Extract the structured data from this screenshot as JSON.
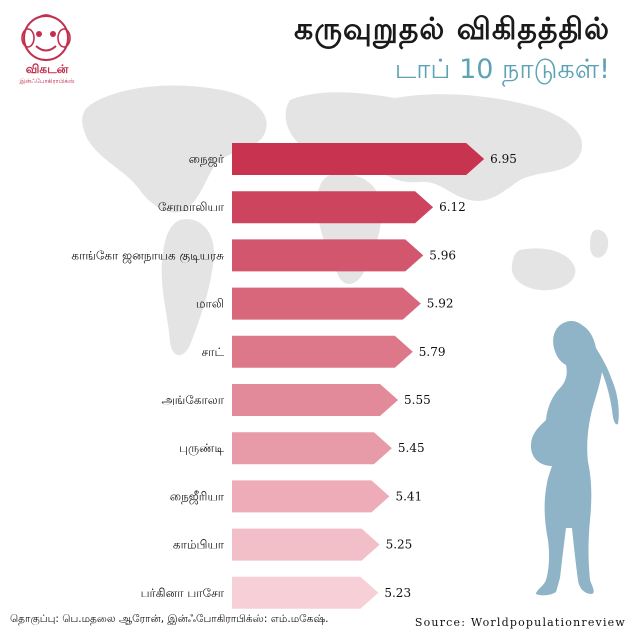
{
  "header": {
    "title_line1": "கருவுறுதல் விகிதத்தில்",
    "title_line2": "டாப் 10 நாடுகள்!"
  },
  "logo": {
    "name": "விகடன்",
    "tagline": "இன்ஃபோகிராபிக்ஸ்"
  },
  "footer": {
    "credits": "தொகுப்பு: பெ.மதலை ஆரோன்,     இன்ஃபோகிராபிக்ஸ்: எம்.மகேஷ்.",
    "source": "Source: Worldpopulationreview"
  },
  "colors": {
    "title_accent": "#5ea2b6",
    "silhouette": "#8fb3c7",
    "logo": "#c2304f",
    "bar_top": "#c8334f",
    "bar_bottom": "#f7cfd6"
  },
  "chart_data": {
    "type": "bar",
    "orientation": "horizontal",
    "categories": [
      "நைஜர்",
      "சோமாலியா",
      "காங்கோ ஜனநாயக குடியரசு",
      "மாலி",
      "சாட்",
      "அங்கோலா",
      "புருண்டி",
      "நைஜீரியா",
      "காம்பியா",
      "பர்கினா பாசோ"
    ],
    "values": [
      6.95,
      6.12,
      5.96,
      5.92,
      5.79,
      5.55,
      5.45,
      5.41,
      5.25,
      5.23
    ],
    "value_labels": [
      "6.95",
      "6.12",
      "5.96",
      "5.92",
      "5.79",
      "5.55",
      "5.45",
      "5.41",
      "5.25",
      "5.23"
    ],
    "xlim": [
      0,
      7
    ],
    "grid": false,
    "legend": "none"
  }
}
